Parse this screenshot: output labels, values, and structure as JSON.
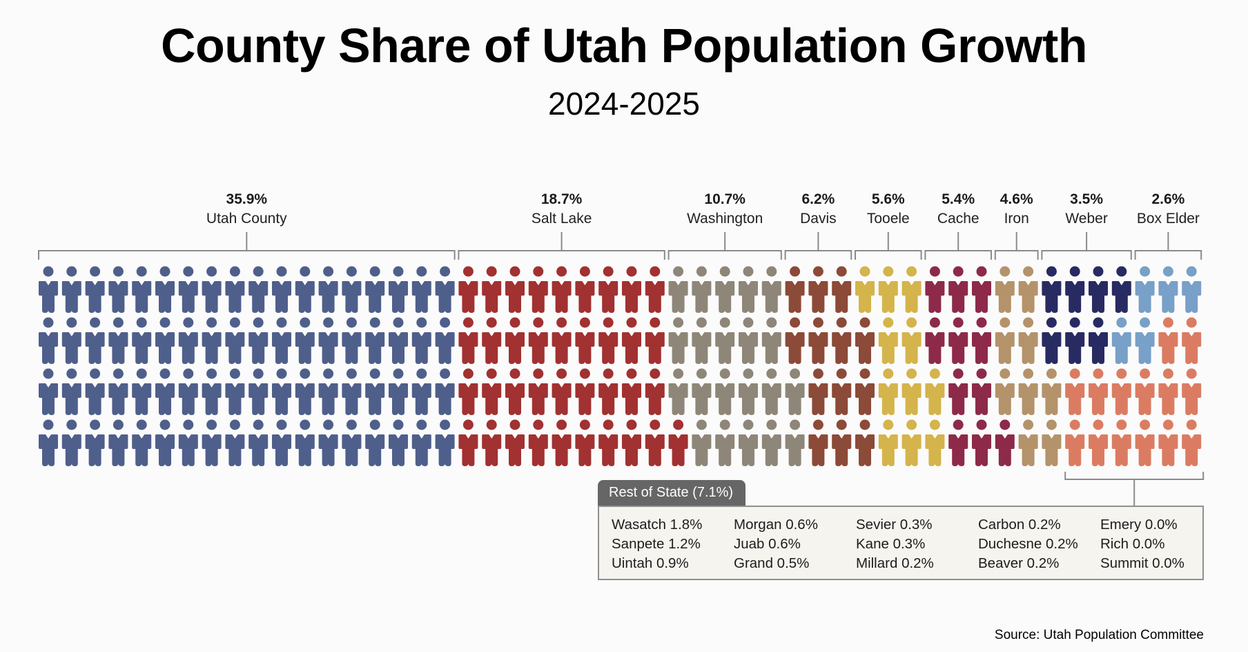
{
  "header": {
    "title": "County Share of Utah Population Growth",
    "subtitle": "2024-2025"
  },
  "source": "Source: Utah Population Committee",
  "chart_data": {
    "type": "pictogram",
    "title": "County Share of Utah Population Growth",
    "subtitle": "2024-2025",
    "unit_per_icon_percent": 0.5,
    "rows": 4,
    "columns": 50,
    "counties": [
      {
        "key": "U",
        "name": "Utah County",
        "percent_label": "35.9%",
        "percent": 35.9,
        "color": "#4f5f8b",
        "columns": 18
      },
      {
        "key": "S",
        "name": "Salt Lake",
        "percent_label": "18.7%",
        "percent": 18.7,
        "color": "#a23131",
        "columns": 9
      },
      {
        "key": "W",
        "name": "Washington",
        "percent_label": "10.7%",
        "percent": 10.7,
        "color": "#8e8678",
        "columns": 5
      },
      {
        "key": "D",
        "name": "Davis",
        "percent_label": "6.2%",
        "percent": 6.2,
        "color": "#8c4a38",
        "columns": 3
      },
      {
        "key": "T",
        "name": "Tooele",
        "percent_label": "5.6%",
        "percent": 5.6,
        "color": "#d4b44b",
        "columns": 3
      },
      {
        "key": "C",
        "name": "Cache",
        "percent_label": "5.4%",
        "percent": 5.4,
        "color": "#8d2a49",
        "columns": 3
      },
      {
        "key": "I",
        "name": "Iron",
        "percent_label": "4.6%",
        "percent": 4.6,
        "color": "#b4936b",
        "columns": 2
      },
      {
        "key": "B",
        "name": "Weber",
        "percent_label": "3.5%",
        "percent": 3.5,
        "color": "#282a62",
        "columns": 4
      },
      {
        "key": "E",
        "name": "Box Elder",
        "percent_label": "2.6%",
        "percent": 2.6,
        "color": "#78a0c8",
        "columns": 3
      },
      {
        "key": "R",
        "name": "Rest of State",
        "percent_label": "7.1%",
        "percent": 7.1,
        "color": "#db7c62",
        "columns": 0
      }
    ],
    "icon_grid_columns": [
      "UUUU",
      "UUUU",
      "UUUU",
      "UUUU",
      "UUUU",
      "UUUU",
      "UUUU",
      "UUUU",
      "UUUU",
      "UUUU",
      "UUUU",
      "UUUU",
      "UUUU",
      "UUUU",
      "UUUU",
      "UUUU",
      "UUUU",
      "UUUU",
      "SSSS",
      "SSSS",
      "SSSS",
      "SSSS",
      "SSSS",
      "SSSS",
      "SSSS",
      "SSSS",
      "SSSS",
      "WWWS",
      "WWWW",
      "WWWW",
      "WWWW",
      "WWWW",
      "DDWW",
      "DDDD",
      "DDDD",
      "TDDD",
      "TTTT",
      "TTTT",
      "CCTT",
      "CCCC",
      "CCCC",
      "IIIC",
      "IIII",
      "BBII",
      "BBRR",
      "BBRR",
      "BERR",
      "EERR",
      "ERRR",
      "ERRR"
    ],
    "rest_of_state_bracket_columns": [
      45,
      50
    ],
    "rest_of_state": {
      "label": "Rest of State (7.1%)",
      "columns": [
        [
          "Wasatch 1.8%",
          "Sanpete 1.2%",
          "Uintah 0.9%"
        ],
        [
          "Morgan 0.6%",
          "Juab 0.6%",
          "Grand 0.5%"
        ],
        [
          "Sevier 0.3%",
          "Kane 0.3%",
          "Millard 0.2%"
        ],
        [
          "Carbon 0.2%",
          "Duchesne 0.2%",
          "Beaver 0.2%"
        ],
        [
          "Emery 0.0%",
          "Rich 0.0%",
          "Summit 0.0%"
        ]
      ]
    }
  }
}
